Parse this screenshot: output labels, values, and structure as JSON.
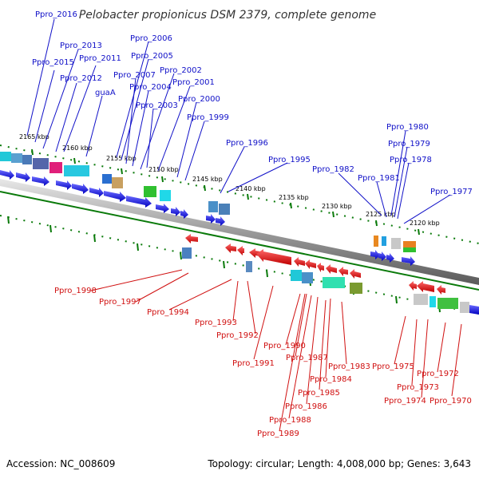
{
  "title": "Pelobacter propionicus DSM 2379, complete genome",
  "accession": "Accession: NC_008609",
  "topology": "Topology: circular; Length: 4,008,000 bp; Genes: 3,643",
  "kbp_labels": [
    "2165 kbp",
    "2160 kbp",
    "2155 kbp",
    "2150 kbp",
    "2145 kbp",
    "2140 kbp",
    "2135 kbp",
    "2130 kbp",
    "2125 kbp",
    "2120 kbp"
  ],
  "top_genes": [
    "Ppro_2016",
    "Ppro_2013",
    "Ppro_2015",
    "Ppro_2011",
    "Ppro_2012",
    "guaA",
    "Ppro_2006",
    "Ppro_2005",
    "Ppro_2007",
    "Ppro_2002",
    "Ppro_2004",
    "Ppro_2001",
    "Ppro_2003",
    "Ppro_2000",
    "Ppro_1999",
    "Ppro_1996",
    "Ppro_1995",
    "Ppro_1982",
    "Ppro_1981",
    "Ppro_1980",
    "Ppro_1979",
    "Ppro_1978",
    "Ppro_1977"
  ],
  "bottom_genes": [
    "Ppro_1998",
    "Ppro_1997",
    "Ppro_1994",
    "Ppro_1993",
    "Ppro_1992",
    "Ppro_1991",
    "Ppro_1990",
    "Ppro_1987",
    "Ppro_1984",
    "Ppro_1983",
    "Ppro_1985",
    "Ppro_1986",
    "Ppro_1988",
    "Ppro_1989",
    "Ppro_1975",
    "Ppro_1973",
    "Ppro_1974",
    "Ppro_1972",
    "Ppro_1970"
  ],
  "colors": {
    "forward": "#0a0ae0",
    "reverse": "#e00000",
    "backbone": "#888888",
    "tick": "#0a7a0a",
    "top_label": "#1010c8",
    "bottom_label": "#d01010"
  }
}
